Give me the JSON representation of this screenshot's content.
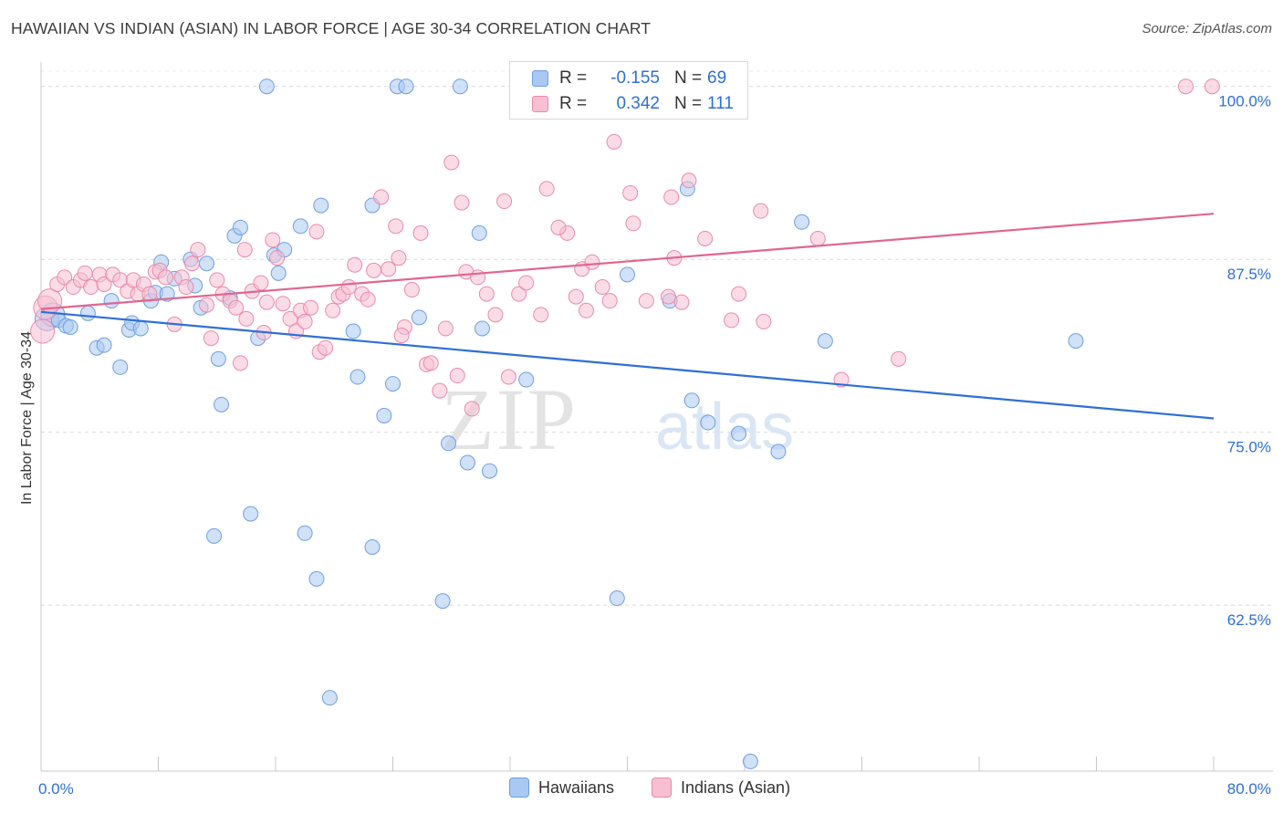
{
  "header": {
    "title": "HAWAIIAN VS INDIAN (ASIAN) IN LABOR FORCE | AGE 30-34 CORRELATION CHART",
    "source": "Source: ZipAtlas.com"
  },
  "legend": {
    "r_label": "R =",
    "n_label": "N =",
    "rows": [
      {
        "r": "-0.155",
        "n": "69",
        "color": "#a9c8f2",
        "border": "#6f9fe0"
      },
      {
        "r": "0.342",
        "n": "111",
        "color": "#f7bfd1",
        "border": "#e98aab"
      }
    ]
  },
  "bottom_legend": [
    {
      "label": "Hawaiians",
      "color": "#a9c8f2",
      "border": "#6f9fe0"
    },
    {
      "label": "Indians (Asian)",
      "color": "#f7bfd1",
      "border": "#e98aab"
    }
  ],
  "watermark": {
    "zip": "ZIP",
    "atlas": "atlas"
  },
  "chart_data": {
    "type": "scatter",
    "title": "HAWAIIAN VS INDIAN (ASIAN) IN LABOR FORCE | AGE 30-34 CORRELATION CHART",
    "xlabel": "",
    "ylabel": "In Labor Force | Age 30-34",
    "xlim": [
      0,
      80
    ],
    "ylim": [
      50.5,
      101.5
    ],
    "x_tick_labels": [
      "0.0%",
      "80.0%"
    ],
    "y_ticks": [
      62.5,
      75.0,
      87.5,
      100.0
    ],
    "y_tick_labels": [
      "62.5%",
      "75.0%",
      "87.5%",
      "100.0%"
    ],
    "grid": "horizontal dashed",
    "legend_position": "top-center",
    "series": [
      {
        "name": "Hawaiians",
        "color": "#6f9fe0",
        "fill": "#a9c8f2",
        "trend": {
          "x": [
            0,
            80
          ],
          "y": [
            83.7,
            76.0
          ],
          "color": "#2f6fd6"
        },
        "points": [
          [
            0.4,
            83.2
          ],
          [
            0.8,
            83.5
          ],
          [
            1.2,
            83.1
          ],
          [
            1.7,
            82.7
          ],
          [
            2.0,
            82.6
          ],
          [
            3.2,
            83.6
          ],
          [
            3.8,
            81.1
          ],
          [
            4.3,
            81.3
          ],
          [
            4.8,
            84.5
          ],
          [
            5.4,
            79.7
          ],
          [
            6.0,
            82.4
          ],
          [
            6.2,
            82.9
          ],
          [
            6.8,
            82.5
          ],
          [
            7.5,
            84.5
          ],
          [
            7.8,
            85.1
          ],
          [
            8.2,
            87.3
          ],
          [
            8.6,
            85.0
          ],
          [
            9.1,
            86.1
          ],
          [
            10.2,
            87.5
          ],
          [
            10.5,
            85.6
          ],
          [
            10.9,
            84.0
          ],
          [
            11.3,
            87.2
          ],
          [
            11.8,
            67.5
          ],
          [
            12.1,
            80.3
          ],
          [
            12.3,
            77.0
          ],
          [
            12.9,
            84.7
          ],
          [
            13.2,
            89.2
          ],
          [
            13.6,
            89.8
          ],
          [
            14.3,
            69.1
          ],
          [
            14.8,
            81.8
          ],
          [
            15.4,
            100.0
          ],
          [
            15.9,
            87.8
          ],
          [
            16.2,
            86.5
          ],
          [
            16.6,
            88.2
          ],
          [
            17.7,
            89.9
          ],
          [
            18.0,
            67.7
          ],
          [
            18.8,
            64.4
          ],
          [
            19.1,
            91.4
          ],
          [
            19.7,
            55.8
          ],
          [
            21.3,
            82.3
          ],
          [
            21.6,
            79.0
          ],
          [
            22.6,
            91.4
          ],
          [
            22.6,
            66.7
          ],
          [
            23.4,
            76.2
          ],
          [
            24.0,
            78.5
          ],
          [
            24.3,
            100.0
          ],
          [
            24.9,
            100.0
          ],
          [
            25.8,
            83.3
          ],
          [
            27.4,
            62.8
          ],
          [
            27.8,
            74.2
          ],
          [
            28.6,
            100.0
          ],
          [
            29.1,
            72.8
          ],
          [
            29.9,
            89.4
          ],
          [
            30.1,
            82.5
          ],
          [
            30.6,
            72.2
          ],
          [
            33.1,
            78.8
          ],
          [
            33.9,
            100.0
          ],
          [
            39.3,
            63.0
          ],
          [
            40.0,
            86.4
          ],
          [
            42.9,
            84.5
          ],
          [
            44.1,
            92.6
          ],
          [
            44.4,
            77.3
          ],
          [
            45.5,
            75.7
          ],
          [
            47.6,
            74.9
          ],
          [
            48.4,
            51.2
          ],
          [
            50.3,
            73.6
          ],
          [
            51.9,
            90.2
          ],
          [
            53.5,
            81.6
          ],
          [
            70.6,
            81.6
          ]
        ]
      },
      {
        "name": "Indians (Asian)",
        "color": "#e98aab",
        "fill": "#f7bfd1",
        "trend": {
          "x": [
            0,
            80
          ],
          "y": [
            83.9,
            90.8
          ],
          "color": "#e0668f"
        },
        "points": [
          [
            0.1,
            82.3
          ],
          [
            0.3,
            84.0
          ],
          [
            0.6,
            84.5
          ],
          [
            1.1,
            85.7
          ],
          [
            1.6,
            86.2
          ],
          [
            2.2,
            85.5
          ],
          [
            2.7,
            86.0
          ],
          [
            3.0,
            86.5
          ],
          [
            3.4,
            85.5
          ],
          [
            4.0,
            86.4
          ],
          [
            4.3,
            85.7
          ],
          [
            4.9,
            86.4
          ],
          [
            5.4,
            86.0
          ],
          [
            5.9,
            85.2
          ],
          [
            6.3,
            86.0
          ],
          [
            6.6,
            85.0
          ],
          [
            7.0,
            85.7
          ],
          [
            7.4,
            85.0
          ],
          [
            7.8,
            86.6
          ],
          [
            8.1,
            86.7
          ],
          [
            8.5,
            86.2
          ],
          [
            9.1,
            82.8
          ],
          [
            9.6,
            86.2
          ],
          [
            9.9,
            85.5
          ],
          [
            10.3,
            87.2
          ],
          [
            10.7,
            88.2
          ],
          [
            11.3,
            84.2
          ],
          [
            11.6,
            81.8
          ],
          [
            12.0,
            86.0
          ],
          [
            12.4,
            85.0
          ],
          [
            12.9,
            84.5
          ],
          [
            13.3,
            84.0
          ],
          [
            13.6,
            80.0
          ],
          [
            14.0,
            83.2
          ],
          [
            14.4,
            85.2
          ],
          [
            15.0,
            85.8
          ],
          [
            15.4,
            84.4
          ],
          [
            15.8,
            88.9
          ],
          [
            16.1,
            87.6
          ],
          [
            16.5,
            84.3
          ],
          [
            17.0,
            83.2
          ],
          [
            17.4,
            82.3
          ],
          [
            17.7,
            83.8
          ],
          [
            18.0,
            83.0
          ],
          [
            18.4,
            84.0
          ],
          [
            18.8,
            89.5
          ],
          [
            19.0,
            80.8
          ],
          [
            19.4,
            81.1
          ],
          [
            19.9,
            83.8
          ],
          [
            20.3,
            84.8
          ],
          [
            20.6,
            85.0
          ],
          [
            21.0,
            85.5
          ],
          [
            21.4,
            87.1
          ],
          [
            21.9,
            85.0
          ],
          [
            22.3,
            84.6
          ],
          [
            22.7,
            86.7
          ],
          [
            23.2,
            92.0
          ],
          [
            23.7,
            86.8
          ],
          [
            24.2,
            89.9
          ],
          [
            24.4,
            87.6
          ],
          [
            24.8,
            82.6
          ],
          [
            25.3,
            85.3
          ],
          [
            25.9,
            89.4
          ],
          [
            26.3,
            79.9
          ],
          [
            26.6,
            80.0
          ],
          [
            27.2,
            78.0
          ],
          [
            27.6,
            82.5
          ],
          [
            28.0,
            94.5
          ],
          [
            28.4,
            79.1
          ],
          [
            28.7,
            91.6
          ],
          [
            29.0,
            86.6
          ],
          [
            29.4,
            76.7
          ],
          [
            29.8,
            86.2
          ],
          [
            30.4,
            85.0
          ],
          [
            31.0,
            83.5
          ],
          [
            31.6,
            91.7
          ],
          [
            31.9,
            79.0
          ],
          [
            32.6,
            85.0
          ],
          [
            33.1,
            85.8
          ],
          [
            34.1,
            83.5
          ],
          [
            34.5,
            92.6
          ],
          [
            35.9,
            89.4
          ],
          [
            36.5,
            84.8
          ],
          [
            36.9,
            86.8
          ],
          [
            37.2,
            83.8
          ],
          [
            37.6,
            87.3
          ],
          [
            38.3,
            85.5
          ],
          [
            38.8,
            84.5
          ],
          [
            39.1,
            96.0
          ],
          [
            40.2,
            92.3
          ],
          [
            40.4,
            90.1
          ],
          [
            41.3,
            84.5
          ],
          [
            42.8,
            84.8
          ],
          [
            43.2,
            87.6
          ],
          [
            43.7,
            84.4
          ],
          [
            44.2,
            93.2
          ],
          [
            45.3,
            89.0
          ],
          [
            47.1,
            83.1
          ],
          [
            47.6,
            85.0
          ],
          [
            49.1,
            91.0
          ],
          [
            53.0,
            89.0
          ],
          [
            54.6,
            78.8
          ],
          [
            58.5,
            80.3
          ],
          [
            78.1,
            100.0
          ],
          [
            79.9,
            100.0
          ],
          [
            43.0,
            92.0
          ],
          [
            24.6,
            82.0
          ],
          [
            15.2,
            82.2
          ],
          [
            49.3,
            83.0
          ],
          [
            35.3,
            89.8
          ],
          [
            13.9,
            88.2
          ]
        ]
      }
    ]
  }
}
